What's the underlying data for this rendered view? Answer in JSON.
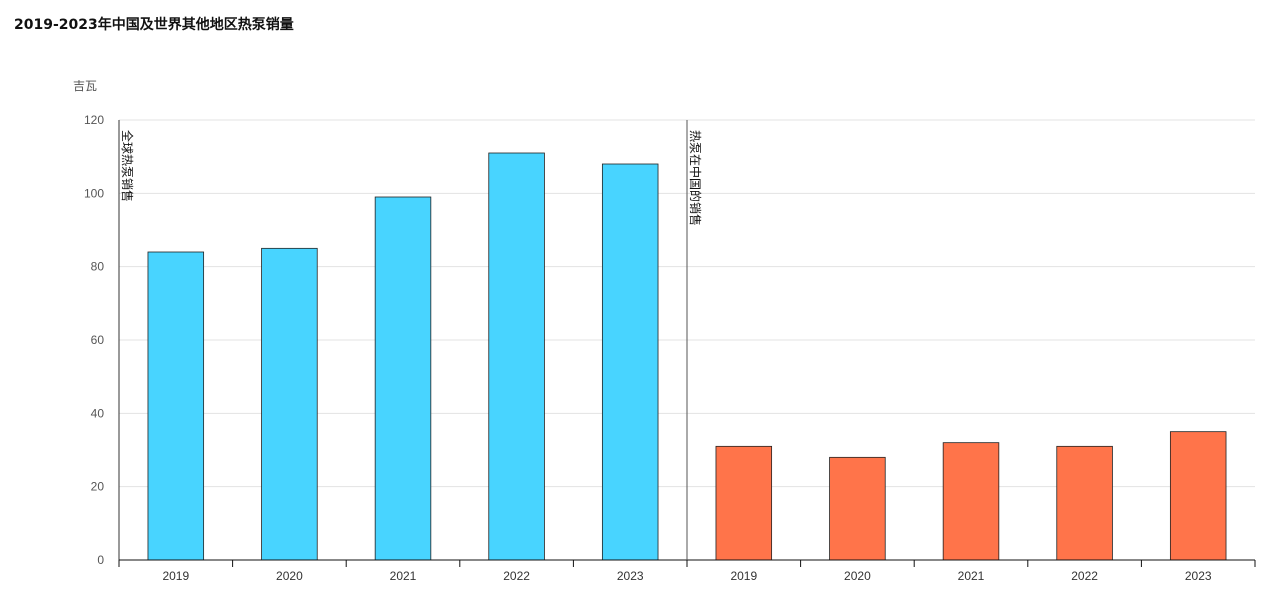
{
  "chart_data": {
    "type": "bar",
    "title": "2019-2023年中国及世界其他地区热泵销量",
    "ylabel": "吉瓦",
    "ylim": [
      0,
      120
    ],
    "yticks": [
      0,
      20,
      40,
      60,
      80,
      100,
      120
    ],
    "grid": true,
    "series": [
      {
        "name": "全球热泵销售",
        "color": "#48d4ff",
        "categories": [
          "2019",
          "2020",
          "2021",
          "2022",
          "2023"
        ],
        "values": [
          84,
          85,
          99,
          111,
          108
        ]
      },
      {
        "name": "热泵在中国的销售",
        "color": "#ff744a",
        "categories": [
          "2019",
          "2020",
          "2021",
          "2022",
          "2023"
        ],
        "values": [
          31,
          28,
          32,
          31,
          35
        ]
      }
    ]
  }
}
